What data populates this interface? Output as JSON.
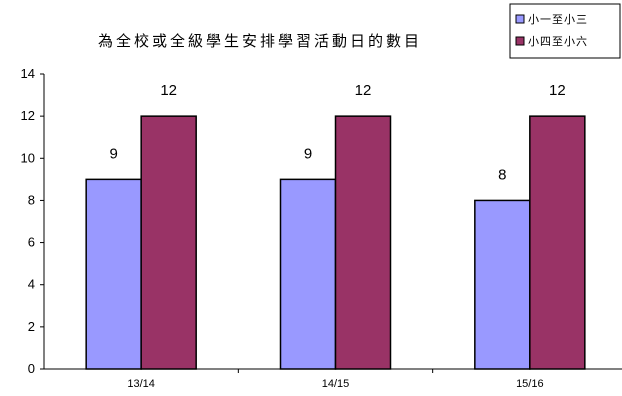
{
  "chart_data": {
    "type": "bar",
    "title": "為全校或全級學生安排學習活動日的數目",
    "categories": [
      "13/14",
      "14/15",
      "15/16"
    ],
    "series": [
      {
        "name": "小一至小三",
        "values": [
          9,
          9,
          8
        ],
        "color": "#9999ff"
      },
      {
        "name": "小四至小六",
        "values": [
          12,
          12,
          12
        ],
        "color": "#993366"
      }
    ],
    "ylim": [
      0,
      14
    ],
    "yticks": [
      0,
      2,
      4,
      6,
      8,
      10,
      12,
      14
    ],
    "grid": false,
    "legend_position": "top-right",
    "xlabel": "",
    "ylabel": ""
  }
}
